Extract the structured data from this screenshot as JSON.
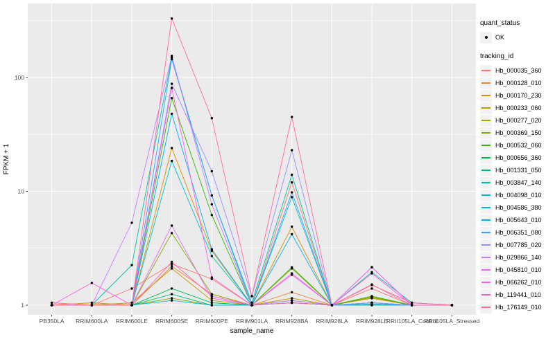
{
  "chart_data": {
    "type": "line",
    "xlabel": "sample_name",
    "ylabel": "FPKM + 1",
    "y_scale": "log10",
    "y_ticks": [
      1,
      10,
      100
    ],
    "y_tick_labels": [
      "1",
      "10",
      "100"
    ],
    "y_minor_ticks": [
      3.162,
      31.62,
      316.2
    ],
    "grid": true,
    "panel_color": "#EBEBEB",
    "grid_color": "#FFFFFF",
    "point_color": "#000000",
    "x_categories": [
      "PB350LA",
      "RRIM600LA",
      "RRIM600LE",
      "RRIM600SE",
      "RRIM600PE",
      "RRIM901LA",
      "RRIM928BA",
      "RRIM928LA",
      "RRIM928LE",
      "RRII105LA_Control",
      "RRII105LA_Stressed"
    ],
    "series": [
      {
        "name": "Hb_000035_360",
        "color": "#F8766D",
        "values": [
          1,
          1,
          1.4,
          2.3,
          1.7,
          1,
          12,
          1,
          1.4,
          1,
          1
        ]
      },
      {
        "name": "Hb_000128_010",
        "color": "#EA8331",
        "values": [
          1,
          1,
          1,
          2.2,
          1.25,
          1,
          1.3,
          1,
          1.05,
          1,
          1
        ]
      },
      {
        "name": "Hb_000170_230",
        "color": "#D89000",
        "values": [
          1,
          1.05,
          1,
          24,
          3,
          1,
          4.9,
          1,
          1.15,
          1,
          1
        ]
      },
      {
        "name": "Hb_000233_060",
        "color": "#C09B00",
        "values": [
          1,
          1,
          1.05,
          2.1,
          1.1,
          1,
          1.15,
          1,
          1.18,
          1,
          1
        ]
      },
      {
        "name": "Hb_000277_020",
        "color": "#A3A500",
        "values": [
          1,
          1,
          1,
          1.15,
          1,
          1,
          1.05,
          1,
          1,
          1,
          1
        ]
      },
      {
        "name": "Hb_000369_150",
        "color": "#7CAE00",
        "values": [
          1,
          1,
          1,
          4.3,
          1.25,
          1,
          2.1,
          1,
          1.17,
          1,
          1
        ]
      },
      {
        "name": "Hb_000532_060",
        "color": "#39B600",
        "values": [
          1,
          1,
          1,
          66,
          6.2,
          1,
          2.15,
          1,
          1.2,
          1,
          1
        ]
      },
      {
        "name": "Hb_000656_360",
        "color": "#00BB4E",
        "values": [
          1,
          1,
          1,
          1.4,
          1.05,
          1,
          1.1,
          1,
          1.05,
          1,
          1
        ]
      },
      {
        "name": "Hb_001331_050",
        "color": "#00BF7D",
        "values": [
          1,
          1,
          1,
          1.25,
          1,
          1,
          1.05,
          1,
          1,
          1,
          1
        ]
      },
      {
        "name": "Hb_003847_140",
        "color": "#00C1A3",
        "values": [
          1,
          1,
          2.25,
          150,
          9.2,
          1.05,
          14,
          1,
          1.95,
          1.05,
          1
        ]
      },
      {
        "name": "Hb_004098_010",
        "color": "#00BFC4",
        "values": [
          1,
          1,
          1,
          18.5,
          2.7,
          1,
          8.9,
          1,
          1.05,
          1,
          1
        ]
      },
      {
        "name": "Hb_004586_380",
        "color": "#00BAE0",
        "values": [
          1,
          1,
          1,
          1.1,
          1,
          1,
          1.05,
          1,
          1.02,
          1,
          1
        ]
      },
      {
        "name": "Hb_005643_010",
        "color": "#00B0F6",
        "values": [
          1,
          1,
          1,
          48,
          3.1,
          1,
          4.2,
          1,
          1.02,
          1,
          1
        ]
      },
      {
        "name": "Hb_006351_080",
        "color": "#35A2FF",
        "values": [
          1,
          1,
          1,
          145,
          9.2,
          1,
          9.8,
          1,
          1.02,
          1,
          1
        ]
      },
      {
        "name": "Hb_007785_020",
        "color": "#9590FF",
        "values": [
          1,
          1,
          1,
          88,
          15,
          1.2,
          23,
          1,
          1.05,
          1,
          1
        ]
      },
      {
        "name": "Hb_029866_140",
        "color": "#C77CFF",
        "values": [
          1,
          1,
          5.3,
          155,
          7.7,
          1,
          1.1,
          1,
          2.15,
          1,
          1
        ]
      },
      {
        "name": "Hb_045810_010",
        "color": "#E76BF3",
        "values": [
          1,
          1,
          1,
          5,
          1.15,
          1,
          1.85,
          1,
          2.16,
          1,
          1
        ]
      },
      {
        "name": "Hb_066262_010",
        "color": "#FA62DB",
        "values": [
          1,
          1.57,
          1,
          81,
          1.75,
          1,
          1.9,
          1,
          1.9,
          1,
          1
        ]
      },
      {
        "name": "Hb_119441_010",
        "color": "#FF62BC",
        "values": [
          1,
          1,
          1,
          2.4,
          1.2,
          1,
          1.05,
          1,
          1.52,
          1,
          1
        ]
      },
      {
        "name": "Hb_176149_010",
        "color": "#FF6A98",
        "values": [
          1.05,
          1,
          1,
          330,
          44,
          1.2,
          45,
          1,
          1.5,
          1.05,
          1
        ]
      }
    ]
  },
  "legend": {
    "quant_status": {
      "title": "quant_status",
      "items": [
        {
          "label": "OK",
          "symbol": "point"
        }
      ]
    },
    "tracking_id": {
      "title": "tracking_id"
    }
  }
}
